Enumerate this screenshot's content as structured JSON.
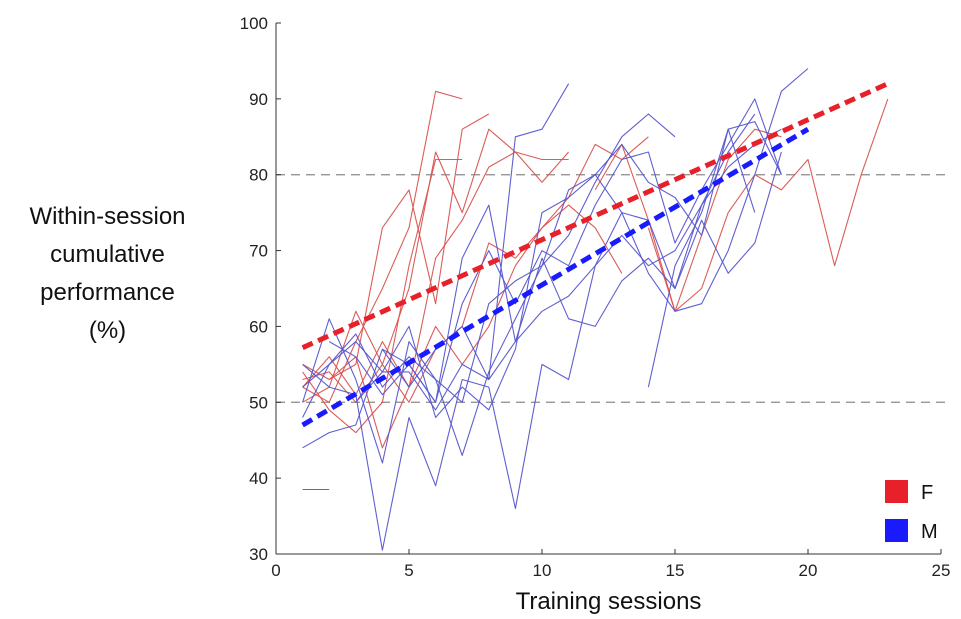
{
  "chart_data": {
    "type": "line",
    "ylabel_lines": [
      "Within-session",
      "cumulative",
      "performance",
      "(%)"
    ],
    "xlabel": "Training sessions",
    "xlim": [
      0,
      25
    ],
    "ylim": [
      30,
      100
    ],
    "xticks": [
      0,
      5,
      10,
      15,
      20,
      25
    ],
    "yticks": [
      30,
      40,
      50,
      60,
      70,
      80,
      90,
      100
    ],
    "reference_lines": [
      50,
      80
    ],
    "legend": {
      "placement": "bottom-right",
      "entries": [
        {
          "label": "F",
          "color": "#e8202a"
        },
        {
          "label": "M",
          "color": "#1a1aff"
        }
      ]
    },
    "trends": [
      {
        "group": "F",
        "color": "#e8202a",
        "x": [
          1,
          23
        ],
        "y": [
          57.2,
          92
        ]
      },
      {
        "group": "M",
        "color": "#1a1aff",
        "x": [
          1,
          20
        ],
        "y": [
          47,
          86
        ]
      }
    ],
    "series": [
      {
        "group": "F",
        "color": "#d9534f",
        "x": [
          1,
          2,
          3,
          4,
          5,
          6,
          7
        ],
        "y": [
          52,
          50,
          58,
          65,
          73,
          91,
          90
        ]
      },
      {
        "group": "F",
        "color": "#d9534f",
        "x": [
          1,
          2,
          3,
          4,
          5,
          6,
          7,
          8
        ],
        "y": [
          55,
          53,
          55,
          73,
          78,
          63,
          86,
          88
        ]
      },
      {
        "group": "F",
        "color": "#d9534f",
        "x": [
          1,
          2,
          3,
          4,
          5,
          6,
          7,
          8,
          9,
          10,
          11
        ],
        "y": [
          50,
          52,
          62,
          55,
          65,
          83,
          75,
          86,
          83,
          82,
          82
        ]
      },
      {
        "group": "F",
        "color": "#d9534f",
        "x": [
          1,
          2,
          3,
          4,
          5,
          6,
          7
        ],
        "y": [
          54,
          49,
          46,
          50,
          68,
          82,
          82
        ]
      },
      {
        "group": "F",
        "color": "#d9534f",
        "x": [
          1,
          2,
          3,
          4,
          5,
          6,
          7,
          8,
          9,
          10,
          11
        ],
        "y": [
          52,
          56,
          51,
          58,
          52,
          69,
          74,
          81,
          83,
          79,
          83
        ]
      },
      {
        "group": "F",
        "color": "#d9534f",
        "x": [
          1,
          2,
          3,
          4,
          5,
          6,
          7,
          8,
          9,
          10,
          11,
          12,
          13,
          14
        ],
        "y": [
          53,
          54,
          50,
          55,
          50,
          57,
          60,
          71,
          69,
          73,
          77,
          84,
          82,
          85
        ]
      },
      {
        "group": "F",
        "color": "#d9534f",
        "x": [
          2,
          3,
          4,
          5,
          6,
          7,
          8,
          9,
          10,
          11,
          12,
          13
        ],
        "y": [
          53,
          56,
          44,
          52,
          60,
          55,
          60,
          68,
          73,
          76,
          73,
          67
        ]
      },
      {
        "group": "F",
        "color": "#d9534f",
        "x": [
          14,
          15,
          16,
          17,
          18,
          19,
          20,
          21,
          22,
          23
        ],
        "y": [
          73,
          62,
          65,
          75,
          80,
          78,
          82,
          68,
          80,
          90
        ]
      },
      {
        "group": "F",
        "color": "#d9534f",
        "x": [
          12,
          13,
          14,
          15,
          16,
          17,
          18,
          19
        ],
        "y": [
          78,
          84,
          74,
          62,
          72,
          82,
          86,
          85
        ]
      },
      {
        "group": "M",
        "color": "#5656cf",
        "x": [
          1,
          2
        ],
        "y": [
          38.5,
          38.5
        ]
      },
      {
        "group": "M",
        "color": "#5656cf",
        "x": [
          1,
          2,
          3,
          4,
          5,
          6,
          7,
          8,
          9,
          10,
          11,
          12,
          13,
          14,
          15,
          16,
          17,
          18,
          19,
          20
        ],
        "y": [
          55,
          52,
          51,
          30.5,
          48,
          39,
          53,
          52,
          36,
          55,
          53,
          68,
          75,
          67,
          62,
          63,
          70,
          80,
          91,
          94
        ]
      },
      {
        "group": "M",
        "color": "#5656cf",
        "x": [
          1,
          2,
          3,
          4,
          5,
          6,
          7,
          8,
          9,
          10,
          11,
          12,
          13,
          14,
          15
        ],
        "y": [
          50,
          61,
          53,
          42,
          58,
          53,
          43,
          54,
          61,
          68,
          72,
          79,
          85,
          88,
          85
        ]
      },
      {
        "group": "M",
        "color": "#5656cf",
        "x": [
          1,
          2,
          3,
          4,
          5,
          6,
          7,
          8,
          9,
          10,
          11
        ],
        "y": [
          52,
          55,
          58,
          54,
          54,
          49,
          55,
          53,
          85,
          86,
          92
        ]
      },
      {
        "group": "M",
        "color": "#5656cf",
        "x": [
          1,
          2,
          3,
          4,
          5,
          6,
          7,
          8,
          9,
          10,
          11,
          12,
          13,
          14,
          15,
          16,
          17,
          18,
          19
        ],
        "y": [
          48,
          55,
          59,
          52,
          56,
          53,
          50,
          63,
          66,
          68,
          78,
          80,
          84,
          79,
          77,
          72,
          86,
          87,
          80
        ]
      },
      {
        "group": "M",
        "color": "#5656cf",
        "x": [
          1,
          2,
          3,
          4,
          5,
          6,
          7,
          8,
          9,
          10,
          11,
          12,
          13,
          14,
          15,
          16,
          17,
          18,
          19
        ],
        "y": [
          44,
          46,
          47,
          57,
          52,
          57,
          60,
          53,
          58,
          62,
          64,
          68,
          72,
          68,
          70,
          76,
          81,
          84,
          86
        ]
      },
      {
        "group": "M",
        "color": "#5656cf",
        "x": [
          2,
          3,
          4,
          5,
          6,
          7,
          8,
          9,
          10,
          11,
          12,
          13,
          14,
          15,
          16,
          17,
          18,
          19
        ],
        "y": [
          58,
          56,
          51,
          55,
          50,
          69,
          76,
          58,
          69,
          61,
          60,
          66,
          69,
          65,
          74,
          67,
          71,
          83
        ]
      },
      {
        "group": "M",
        "color": "#5656cf",
        "x": [
          3,
          4,
          5,
          6,
          7,
          8,
          9,
          10,
          11,
          12,
          13,
          14,
          15,
          16,
          17,
          18
        ],
        "y": [
          50,
          54,
          60,
          48,
          52,
          49,
          57,
          75,
          77,
          80,
          75,
          74,
          65,
          76,
          83,
          88
        ]
      },
      {
        "group": "M",
        "color": "#5656cf",
        "x": [
          14,
          15,
          16,
          17,
          18
        ],
        "y": [
          52,
          68,
          75,
          86,
          75
        ]
      },
      {
        "group": "M",
        "color": "#5656cf",
        "x": [
          4,
          5,
          6,
          7,
          8,
          9,
          10,
          11,
          12,
          13,
          14,
          15,
          16,
          17,
          18,
          19
        ],
        "y": [
          57,
          55,
          50,
          63,
          70,
          63,
          70,
          68,
          76,
          82,
          83,
          71,
          78,
          84,
          90,
          80
        ]
      }
    ]
  }
}
